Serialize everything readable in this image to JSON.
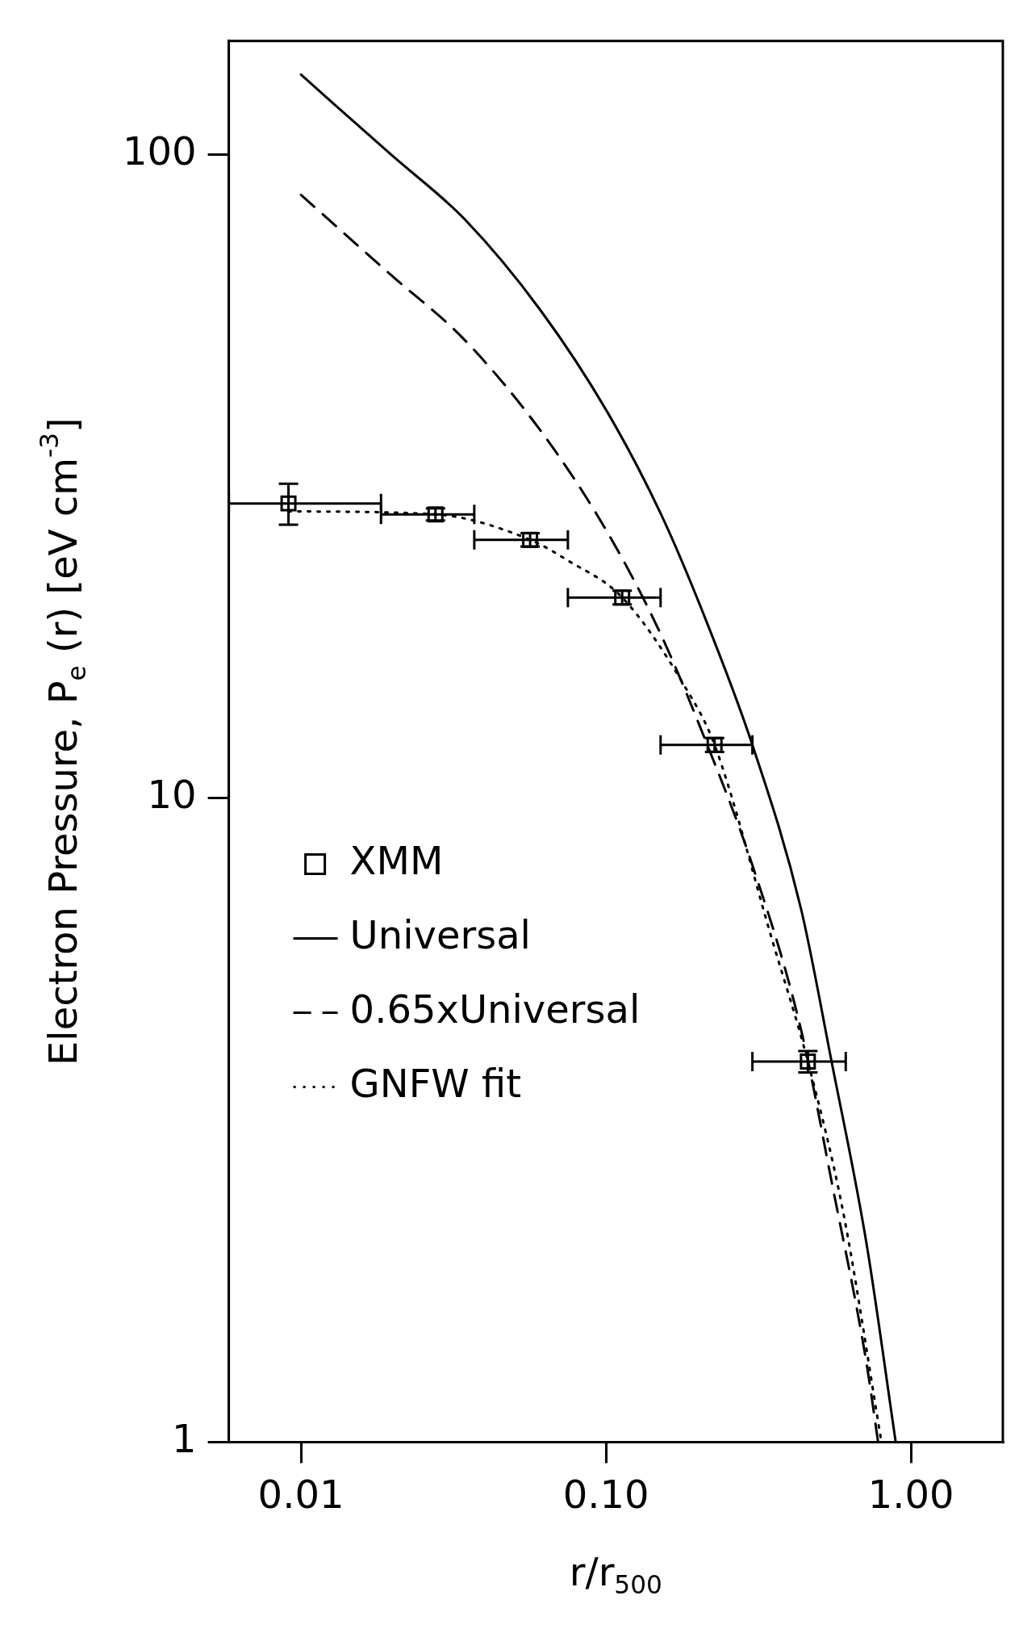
{
  "chart_data": {
    "type": "line",
    "xlabel": "r/r$_{500}$",
    "ylabel": "Electron Pressure, P$_{e}$ (r) [eV cm$^{-3}$]",
    "log": "xy",
    "grid": false,
    "legend": "bottom left",
    "xlim": [
      0.0058,
      2
    ],
    "ylim": [
      1,
      150
    ],
    "xticks": [
      {
        "value": 0.01,
        "label": "0.01"
      },
      {
        "value": 0.1,
        "label": "0.10"
      },
      {
        "value": 1,
        "label": "1.00"
      }
    ],
    "yticks": [
      1,
      10,
      100
    ],
    "series": [
      {
        "name": "XMM",
        "type": "scatter",
        "marker": "square",
        "color": "#000000",
        "x": [
          0.0091,
          0.0276,
          0.0564,
          0.113,
          0.227,
          0.459
        ],
        "values": [
          28.7,
          27.6,
          25.2,
          20.5,
          12.1,
          3.9
        ],
        "errors": [
          [
            26.6,
            30.8
          ],
          [
            27.0,
            28.2
          ],
          [
            24.6,
            25.8
          ],
          [
            20.0,
            21.0
          ],
          [
            11.8,
            12.4
          ],
          [
            3.75,
            4.05
          ]
        ],
        "xerrors": [
          [
            0.0058,
            0.0183
          ],
          [
            0.0183,
            0.037
          ],
          [
            0.037,
            0.075
          ],
          [
            0.075,
            0.151
          ],
          [
            0.151,
            0.302
          ],
          [
            0.302,
            0.611
          ]
        ]
      },
      {
        "name": "Universal",
        "type": "line",
        "line_style": "solid",
        "color": "#000000",
        "x": [
          0.01,
          0.0197,
          0.0344,
          0.0611,
          0.101,
          0.151,
          0.209,
          0.302,
          0.436,
          0.549,
          0.714,
          0.891
        ],
        "values": [
          133,
          100,
          79.3,
          57.2,
          39.8,
          27.7,
          19.3,
          12.1,
          6.73,
          3.9,
          2.04,
          1.0
        ]
      },
      {
        "name": "0.65xUniversal",
        "type": "line",
        "line_style": "dashed",
        "color": "#000000",
        "x": [
          0.01,
          0.0197,
          0.0344,
          0.0611,
          0.101,
          0.151,
          0.209,
          0.302,
          0.436,
          0.549,
          0.714,
          0.78
        ],
        "values": [
          86.5,
          65,
          51.5,
          37.2,
          25.9,
          18.0,
          12.5,
          7.87,
          4.37,
          2.54,
          1.33,
          1.0
        ]
      },
      {
        "name": "GNFW fit",
        "type": "line",
        "line_style": "dotted",
        "color": "#000000",
        "x": [
          0.0091,
          0.0276,
          0.0564,
          0.075,
          0.113,
          0.18,
          0.227,
          0.35,
          0.459,
          0.6,
          0.8
        ],
        "values": [
          27.9,
          27.6,
          25.2,
          23.4,
          20.5,
          15.0,
          12.1,
          6.04,
          3.9,
          2.27,
          1.0
        ]
      }
    ]
  }
}
